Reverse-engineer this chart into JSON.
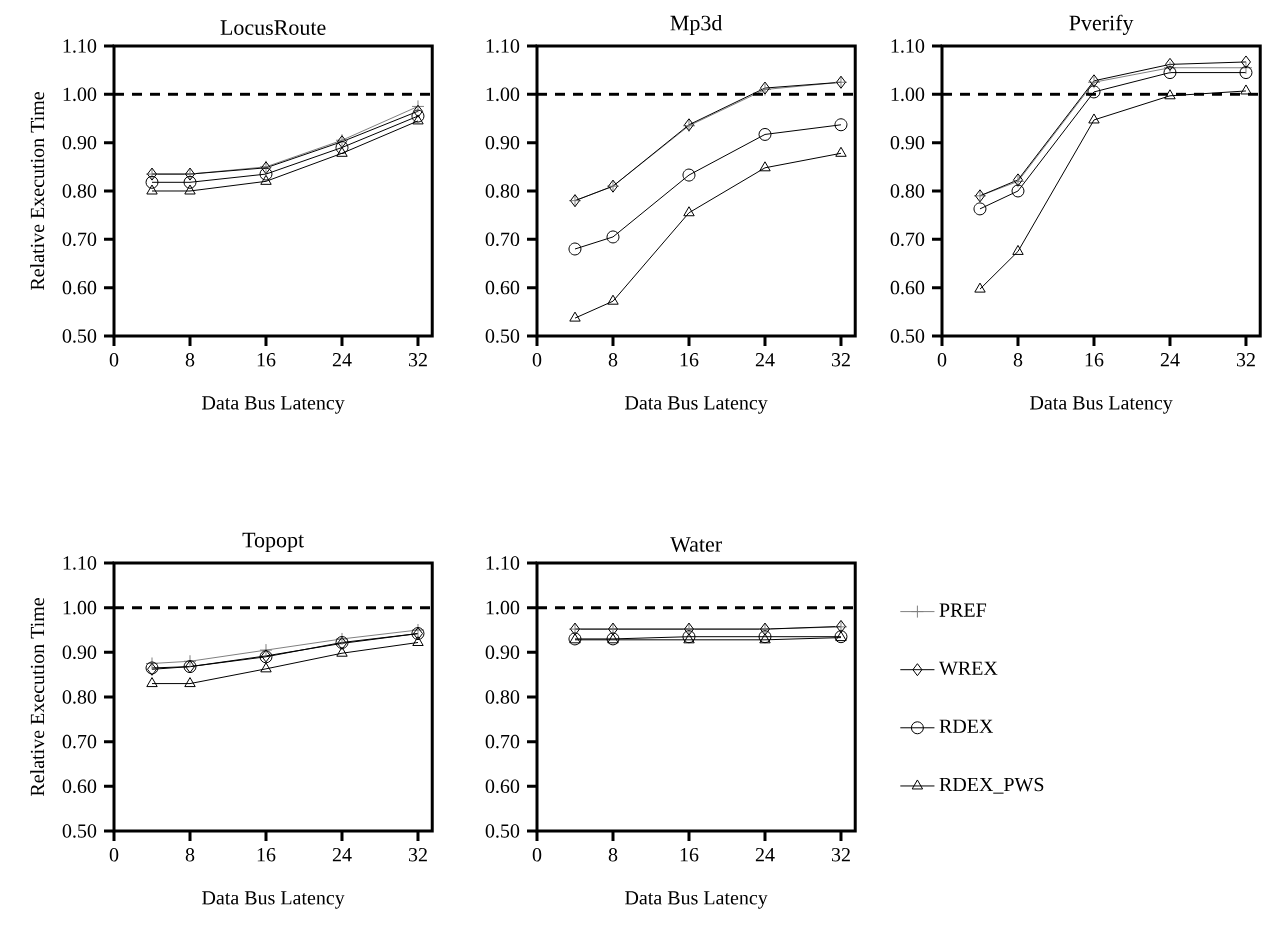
{
  "chart_data": [
    {
      "type": "line",
      "title": "LocusRoute",
      "xlabel": "Data Bus Latency",
      "ylabel": "Relative Execution Time",
      "x": [
        4,
        8,
        16,
        24,
        32
      ],
      "xlim": [
        0,
        33.5
      ],
      "xticks": [
        0,
        8,
        16,
        24,
        32
      ],
      "ylim": [
        0.5,
        1.1
      ],
      "yticks": [
        {
          "value": 0.5,
          "label": "0.50"
        },
        {
          "value": 0.6,
          "label": "0.60"
        },
        {
          "value": 0.7,
          "label": "0.70"
        },
        {
          "value": 0.8,
          "label": "0.80"
        },
        {
          "value": 0.9,
          "label": "0.90"
        },
        {
          "value": 1.0,
          "label": "1.00"
        },
        {
          "value": 1.1,
          "label": "1.10"
        }
      ],
      "ref_lines": [
        {
          "axis": "y",
          "value": 1.0,
          "color": "#000000",
          "line_style": "dashed"
        }
      ],
      "grid": false,
      "legend": false,
      "series": [
        {
          "color": "#7f7f7f",
          "marker": "cross",
          "values": [
            0.835,
            0.835,
            0.85,
            0.905,
            0.975
          ]
        },
        {
          "color": "#000000",
          "marker": "diamond",
          "values": [
            0.835,
            0.835,
            0.848,
            0.902,
            0.965
          ]
        },
        {
          "color": "#000000",
          "marker": "circle",
          "values": [
            0.818,
            0.818,
            0.835,
            0.89,
            0.955
          ]
        },
        {
          "color": "#000000",
          "marker": "triangle",
          "values": [
            0.8,
            0.8,
            0.82,
            0.878,
            0.945
          ]
        }
      ]
    },
    {
      "type": "line",
      "title": "Mp3d",
      "xlabel": "Data Bus Latency",
      "x": [
        4,
        8,
        16,
        24,
        32
      ],
      "xlim": [
        0,
        33.5
      ],
      "xticks": [
        0,
        8,
        16,
        24,
        32
      ],
      "ylim": [
        0.5,
        1.1
      ],
      "yticks": [
        {
          "value": 0.5,
          "label": "0.50"
        },
        {
          "value": 0.6,
          "label": "0.60"
        },
        {
          "value": 0.7,
          "label": "0.70"
        },
        {
          "value": 0.8,
          "label": "0.80"
        },
        {
          "value": 0.9,
          "label": "0.90"
        },
        {
          "value": 1.0,
          "label": "1.00"
        },
        {
          "value": 1.1,
          "label": "1.10"
        }
      ],
      "ref_lines": [
        {
          "axis": "y",
          "value": 1.0,
          "color": "#000000",
          "line_style": "dashed"
        }
      ],
      "grid": false,
      "legend": false,
      "series": [
        {
          "color": "#7f7f7f",
          "marker": "cross",
          "values": [
            0.78,
            0.81,
            0.935,
            1.01,
            1.025
          ]
        },
        {
          "color": "#000000",
          "marker": "diamond",
          "values": [
            0.78,
            0.81,
            0.937,
            1.013,
            1.025
          ]
        },
        {
          "color": "#000000",
          "marker": "circle",
          "values": [
            0.68,
            0.705,
            0.833,
            0.917,
            0.937
          ]
        },
        {
          "color": "#000000",
          "marker": "triangle",
          "values": [
            0.537,
            0.572,
            0.755,
            0.848,
            0.878
          ]
        }
      ]
    },
    {
      "type": "line",
      "title": "Pverify",
      "xlabel": "Data Bus Latency",
      "x": [
        4,
        8,
        16,
        24,
        32
      ],
      "xlim": [
        0,
        33.5
      ],
      "xticks": [
        0,
        8,
        16,
        24,
        32
      ],
      "ylim": [
        0.5,
        1.1
      ],
      "yticks": [
        {
          "value": 0.5,
          "label": "0.50"
        },
        {
          "value": 0.6,
          "label": "0.60"
        },
        {
          "value": 0.7,
          "label": "0.70"
        },
        {
          "value": 0.8,
          "label": "0.80"
        },
        {
          "value": 0.9,
          "label": "0.90"
        },
        {
          "value": 1.0,
          "label": "1.00"
        },
        {
          "value": 1.1,
          "label": "1.10"
        }
      ],
      "ref_lines": [
        {
          "axis": "y",
          "value": 1.0,
          "color": "#000000",
          "line_style": "dashed"
        }
      ],
      "grid": false,
      "legend": false,
      "series": [
        {
          "color": "#7f7f7f",
          "marker": "cross",
          "values": [
            0.79,
            0.82,
            1.025,
            1.055,
            1.055
          ]
        },
        {
          "color": "#000000",
          "marker": "diamond",
          "values": [
            0.79,
            0.823,
            1.028,
            1.062,
            1.067
          ]
        },
        {
          "color": "#000000",
          "marker": "circle",
          "values": [
            0.763,
            0.8,
            1.005,
            1.045,
            1.045
          ]
        },
        {
          "color": "#000000",
          "marker": "triangle",
          "values": [
            0.597,
            0.675,
            0.947,
            0.997,
            1.007
          ]
        }
      ]
    },
    {
      "type": "line",
      "title": "Topopt",
      "xlabel": "Data Bus Latency",
      "ylabel": "Relative Execution Time",
      "x": [
        4,
        8,
        16,
        24,
        32
      ],
      "xlim": [
        0,
        33.5
      ],
      "xticks": [
        0,
        8,
        16,
        24,
        32
      ],
      "ylim": [
        0.5,
        1.1
      ],
      "yticks": [
        {
          "value": 0.5,
          "label": "0.50"
        },
        {
          "value": 0.6,
          "label": "0.60"
        },
        {
          "value": 0.7,
          "label": "0.70"
        },
        {
          "value": 0.8,
          "label": "0.80"
        },
        {
          "value": 0.9,
          "label": "0.90"
        },
        {
          "value": 1.0,
          "label": "1.00"
        },
        {
          "value": 1.1,
          "label": "1.10"
        }
      ],
      "ref_lines": [
        {
          "axis": "y",
          "value": 1.0,
          "color": "#000000",
          "line_style": "dashed"
        }
      ],
      "grid": false,
      "legend": false,
      "series": [
        {
          "color": "#7f7f7f",
          "marker": "cross",
          "values": [
            0.875,
            0.88,
            0.905,
            0.93,
            0.95
          ]
        },
        {
          "color": "#000000",
          "marker": "diamond",
          "values": [
            0.862,
            0.868,
            0.892,
            0.92,
            0.942
          ]
        },
        {
          "color": "#000000",
          "marker": "circle",
          "values": [
            0.865,
            0.868,
            0.89,
            0.922,
            0.942
          ]
        },
        {
          "color": "#000000",
          "marker": "triangle",
          "values": [
            0.83,
            0.83,
            0.863,
            0.898,
            0.922
          ]
        }
      ]
    },
    {
      "type": "line",
      "title": "Water",
      "xlabel": "Data Bus Latency",
      "x": [
        4,
        8,
        16,
        24,
        32
      ],
      "xlim": [
        0,
        33.5
      ],
      "xticks": [
        0,
        8,
        16,
        24,
        32
      ],
      "ylim": [
        0.5,
        1.1
      ],
      "yticks": [
        {
          "value": 0.5,
          "label": "0.50"
        },
        {
          "value": 0.6,
          "label": "0.60"
        },
        {
          "value": 0.7,
          "label": "0.70"
        },
        {
          "value": 0.8,
          "label": "0.80"
        },
        {
          "value": 0.9,
          "label": "0.90"
        },
        {
          "value": 1.0,
          "label": "1.00"
        },
        {
          "value": 1.1,
          "label": "1.10"
        }
      ],
      "ref_lines": [
        {
          "axis": "y",
          "value": 1.0,
          "color": "#000000",
          "line_style": "dashed"
        }
      ],
      "grid": false,
      "legend": "right",
      "series": [
        {
          "name": "PREF",
          "color": "#7f7f7f",
          "marker": "cross",
          "values": [
            0.952,
            0.952,
            0.952,
            0.952,
            0.957
          ]
        },
        {
          "name": "WREX",
          "color": "#000000",
          "marker": "diamond",
          "values": [
            0.952,
            0.952,
            0.952,
            0.952,
            0.958
          ]
        },
        {
          "name": "RDEX",
          "color": "#000000",
          "marker": "circle",
          "values": [
            0.93,
            0.93,
            0.935,
            0.935,
            0.935
          ]
        },
        {
          "name": "RDEX_PWS",
          "color": "#000000",
          "marker": "triangle",
          "values": [
            0.928,
            0.928,
            0.928,
            0.928,
            0.933
          ]
        }
      ]
    }
  ]
}
